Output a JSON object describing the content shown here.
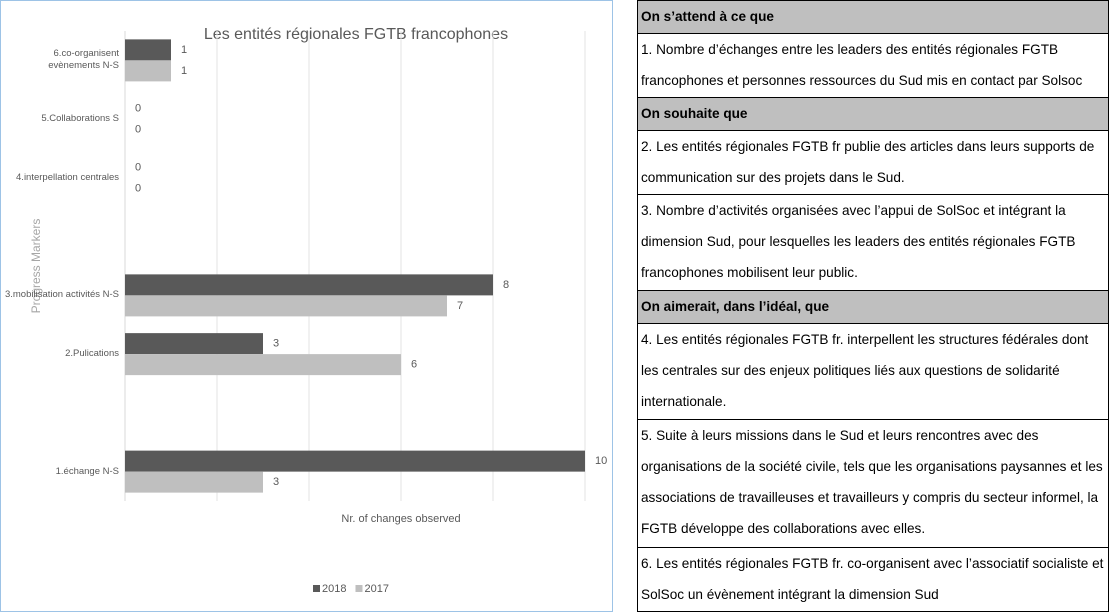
{
  "chart_data": {
    "type": "bar",
    "orientation": "horizontal",
    "title": "Les entités régionales FGTB francophones",
    "x_label": "Nr. of changes observed",
    "y_label": "Progress Markers",
    "categories": [
      "6.co-organisent evènements N-S",
      "5.Collaborations S",
      "4.interpellation centrales",
      null,
      "3.mobilisation activités N-S",
      "2.Pulications",
      null,
      "1.échange N-S"
    ],
    "series": [
      {
        "name": "2018",
        "color": "#595959",
        "values": [
          1,
          0,
          0,
          null,
          8,
          3,
          null,
          10
        ]
      },
      {
        "name": "2017",
        "color": "#bfbfbf",
        "values": [
          1,
          0,
          0,
          null,
          7,
          6,
          null,
          3
        ]
      }
    ],
    "xlim": [
      0,
      10
    ],
    "xgrid": [
      0,
      2,
      4,
      6,
      8,
      10
    ],
    "legend": "bottom"
  },
  "table": {
    "sections": [
      {
        "heading": "On s’attend à ce que",
        "items": [
          "1. Nombre d’échanges entre les leaders des entités régionales FGTB francophones et personnes ressources du Sud mis en contact par Solsoc"
        ]
      },
      {
        "heading": "On souhaite que",
        "items": [
          "2. Les entités régionales FGTB fr publie des articles dans leurs supports de communication sur des projets dans le Sud.",
          "3. Nombre d’activités organisées avec l’appui de SolSoc et intégrant la dimension Sud, pour lesquelles les leaders des entités régionales FGTB francophones mobilisent leur public."
        ]
      },
      {
        "heading": "On aimerait, dans l’idéal, que",
        "items": [
          "4. Les entités régionales FGTB fr. interpellent les structures fédérales dont les centrales sur des enjeux politiques liés aux questions de solidarité internationale.",
          "5. Suite à leurs missions dans le Sud et leurs rencontres avec des organisations de la société civile, tels que les organisations paysannes et les associations de travailleuses et travailleurs y compris du secteur informel, la FGTB  développe des collaborations avec elles.",
          "6. Les entités régionales FGTB fr. co-organisent avec l’associatif socialiste et SolSoc un évènement intégrant la dimension Sud"
        ]
      }
    ]
  }
}
